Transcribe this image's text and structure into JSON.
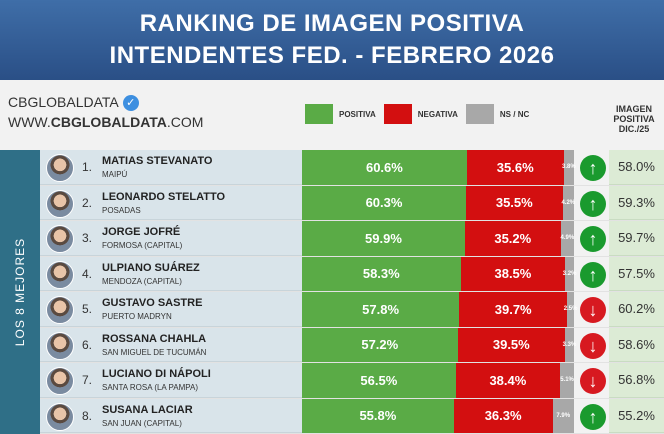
{
  "title": {
    "line1": "RANKING DE IMAGEN POSITIVA",
    "line2": "INTENDENTES FED. - FEBRERO 2026"
  },
  "brand": {
    "name": "CBGLOBALDATA",
    "url_prefix": "WWW.",
    "url_main": "CBGLOBALDATA",
    "url_suffix": ".COM",
    "verified_icon": "verified-check-icon"
  },
  "legend": {
    "positive": "POSITIVA",
    "negative": "NEGATIVA",
    "ns": "NS / NC"
  },
  "colors": {
    "positive": "#5aab46",
    "negative": "#d30f10",
    "ns": "#a8a8a8",
    "up": "#1a9a2e",
    "down": "#d71920"
  },
  "prev_header": {
    "l1": "IMAGEN",
    "l2": "POSITIVA",
    "l3": "DIC./25"
  },
  "group_label": "LOS 8 MEJORES",
  "rows": [
    {
      "rank": "1.",
      "name": "MATIAS STEVANATO",
      "city": "MAIPÚ",
      "pos": 60.6,
      "neg": 35.6,
      "ns": 3.8,
      "pos_label": "60.6%",
      "neg_label": "35.6%",
      "ns_label": "3.8%",
      "trend": "up",
      "prev": "58.0%"
    },
    {
      "rank": "2.",
      "name": "LEONARDO STELATTO",
      "city": "POSADAS",
      "pos": 60.3,
      "neg": 35.5,
      "ns": 4.2,
      "pos_label": "60.3%",
      "neg_label": "35.5%",
      "ns_label": "4.2%",
      "trend": "up",
      "prev": "59.3%"
    },
    {
      "rank": "3.",
      "name": "JORGE JOFRÉ",
      "city": "FORMOSA (CAPITAL)",
      "pos": 59.9,
      "neg": 35.2,
      "ns": 4.9,
      "pos_label": "59.9%",
      "neg_label": "35.2%",
      "ns_label": "4.9%",
      "trend": "up",
      "prev": "59.7%"
    },
    {
      "rank": "4.",
      "name": "ULPIANO SUÁREZ",
      "city": "MENDOZA (CAPITAL)",
      "pos": 58.3,
      "neg": 38.5,
      "ns": 3.2,
      "pos_label": "58.3%",
      "neg_label": "38.5%",
      "ns_label": "3.2%",
      "trend": "up",
      "prev": "57.5%"
    },
    {
      "rank": "5.",
      "name": "GUSTAVO SASTRE",
      "city": "PUERTO MADRYN",
      "pos": 57.8,
      "neg": 39.7,
      "ns": 2.5,
      "pos_label": "57.8%",
      "neg_label": "39.7%",
      "ns_label": "2.5%",
      "trend": "down",
      "prev": "60.2%"
    },
    {
      "rank": "6.",
      "name": "ROSSANA CHAHLA",
      "city": "SAN MIGUEL DE TUCUMÁN",
      "pos": 57.2,
      "neg": 39.5,
      "ns": 3.3,
      "pos_label": "57.2%",
      "neg_label": "39.5%",
      "ns_label": "3.3%",
      "trend": "down",
      "prev": "58.6%"
    },
    {
      "rank": "7.",
      "name": "LUCIANO DI NÁPOLI",
      "city": "SANTA ROSA (LA PAMPA)",
      "pos": 56.5,
      "neg": 38.4,
      "ns": 5.1,
      "pos_label": "56.5%",
      "neg_label": "38.4%",
      "ns_label": "5.1%",
      "trend": "down",
      "prev": "56.8%"
    },
    {
      "rank": "8.",
      "name": "SUSANA LACIAR",
      "city": "SAN JUAN (CAPITAL)",
      "pos": 55.8,
      "neg": 36.3,
      "ns": 7.9,
      "pos_label": "55.8%",
      "neg_label": "36.3%",
      "ns_label": "7.9%",
      "trend": "up",
      "prev": "55.2%"
    }
  ]
}
